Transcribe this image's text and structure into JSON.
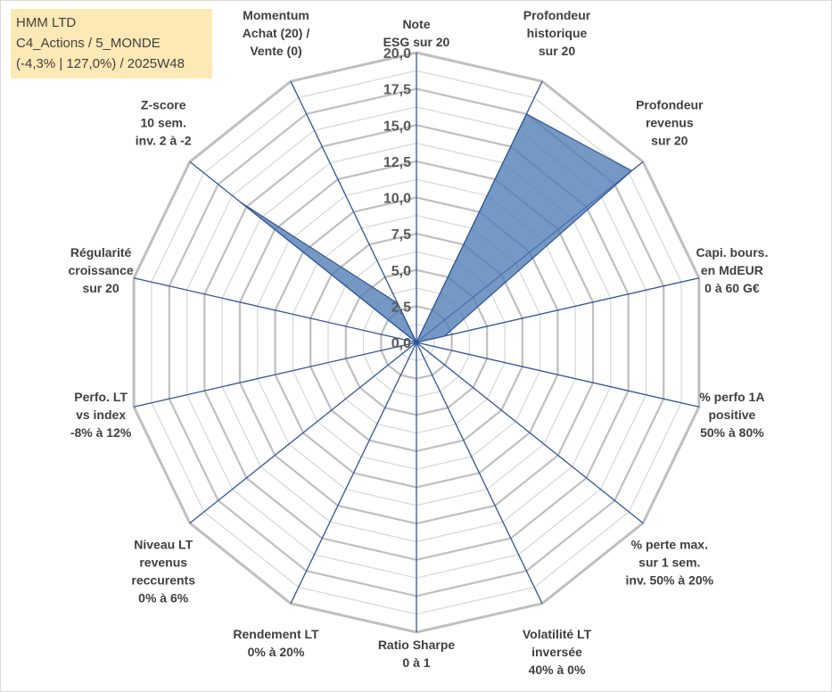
{
  "info": {
    "line1": "HMM LTD",
    "line2": "C4_Actions / 5_MONDE",
    "line3": "(-4,3% | 127,0%) / 2025W48"
  },
  "chart_data": {
    "type": "radar",
    "rmin": 0,
    "rmax": 20,
    "ticks": [
      "0,0",
      "2,5",
      "5,0",
      "7,5",
      "10,0",
      "12,5",
      "15,0",
      "17,5",
      "20,0"
    ],
    "axes": [
      {
        "label": [
          "Note",
          "ESG sur 20"
        ],
        "value": 0
      },
      {
        "label": [
          "Profondeur",
          "historique",
          "sur 20"
        ],
        "value": 17.5
      },
      {
        "label": [
          "Profondeur",
          "revenus",
          "sur 20"
        ],
        "value": 19.0
      },
      {
        "label": [
          "Capi. bours.",
          "en MdEUR",
          "0 à 60 G€"
        ],
        "value": 2.0
      },
      {
        "label": [
          "% perfo 1A",
          "positive",
          "50% à 80%"
        ],
        "value": 0
      },
      {
        "label": [
          "% perte max.",
          "sur 1 sem.",
          "inv. 50% à 20%"
        ],
        "value": 0
      },
      {
        "label": [
          "Volatilité LT",
          "inversée",
          "40% à 0%"
        ],
        "value": 0
      },
      {
        "label": [
          "Ratio Sharpe",
          "0 à 1"
        ],
        "value": 0
      },
      {
        "label": [
          "Rendement LT",
          "0% à 20%"
        ],
        "value": 0
      },
      {
        "label": [
          "Niveau LT",
          "revenus",
          "reccurents",
          "0% à 6%"
        ],
        "value": 0
      },
      {
        "label": [
          "Perfo. LT",
          "vs index",
          "-8% à 12%"
        ],
        "value": 0
      },
      {
        "label": [
          "Régularité",
          "croissance",
          "sur 20"
        ],
        "value": 0
      },
      {
        "label": [
          "Z-score",
          "10 sem.",
          "inv. 2 à -2"
        ],
        "value": 15.5
      },
      {
        "label": [
          "Momentum",
          "Achat (20) /",
          "Vente (0)"
        ],
        "value": 3.0
      }
    ],
    "colors": {
      "fill": "#4f7bb3",
      "fill_opacity": 0.78,
      "stroke": "#2f5597",
      "spoke": "#2f5597",
      "grid_major": "#bfbfbf",
      "grid_minor": "#d9d9d9"
    }
  }
}
